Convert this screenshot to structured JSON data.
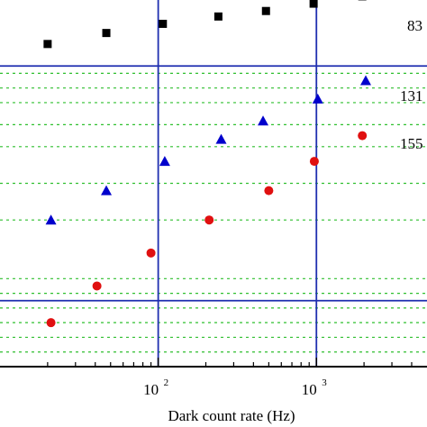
{
  "chart_data": {
    "type": "scatter",
    "xlabel": "Dark count rate (Hz)",
    "xscale": "log",
    "xlim": [
      10,
      5000
    ],
    "x_ticks": [
      {
        "value": 100,
        "base": "10",
        "exp": "2"
      },
      {
        "value": 1000,
        "base": "10",
        "exp": "3"
      }
    ],
    "ylim": [
      0,
      1
    ],
    "grid": {
      "major_color": "#1f2fb0",
      "major_x": [
        100,
        1000
      ],
      "major_y": [
        0.18,
        0.82
      ],
      "minor_color": "#2fbf2f",
      "minor_y": [
        0.04,
        0.08,
        0.12,
        0.16,
        0.2,
        0.24,
        0.4,
        0.5,
        0.6,
        0.66,
        0.72,
        0.76,
        0.8
      ]
    },
    "series": [
      {
        "name": "83",
        "marker": "square",
        "color": "#000000",
        "x": [
          20,
          47,
          107,
          240,
          480,
          960,
          1950
        ],
        "y": [
          0.88,
          0.91,
          0.935,
          0.955,
          0.97,
          0.99,
          1.01
        ]
      },
      {
        "name": "131",
        "marker": "triangle",
        "color": "#0000cc",
        "x": [
          21,
          47,
          110,
          250,
          460,
          1020,
          2050
        ],
        "y": [
          0.4,
          0.48,
          0.56,
          0.62,
          0.67,
          0.73,
          0.78
        ]
      },
      {
        "name": "155",
        "marker": "circle",
        "color": "#e01010",
        "x": [
          21,
          41,
          90,
          210,
          500,
          970,
          1950
        ],
        "y": [
          0.12,
          0.22,
          0.31,
          0.4,
          0.48,
          0.56,
          0.63
        ]
      }
    ],
    "series_labels": [
      {
        "text": "83",
        "series": 0
      },
      {
        "text": "131",
        "series": 1
      },
      {
        "text": "155",
        "series": 2
      }
    ]
  }
}
